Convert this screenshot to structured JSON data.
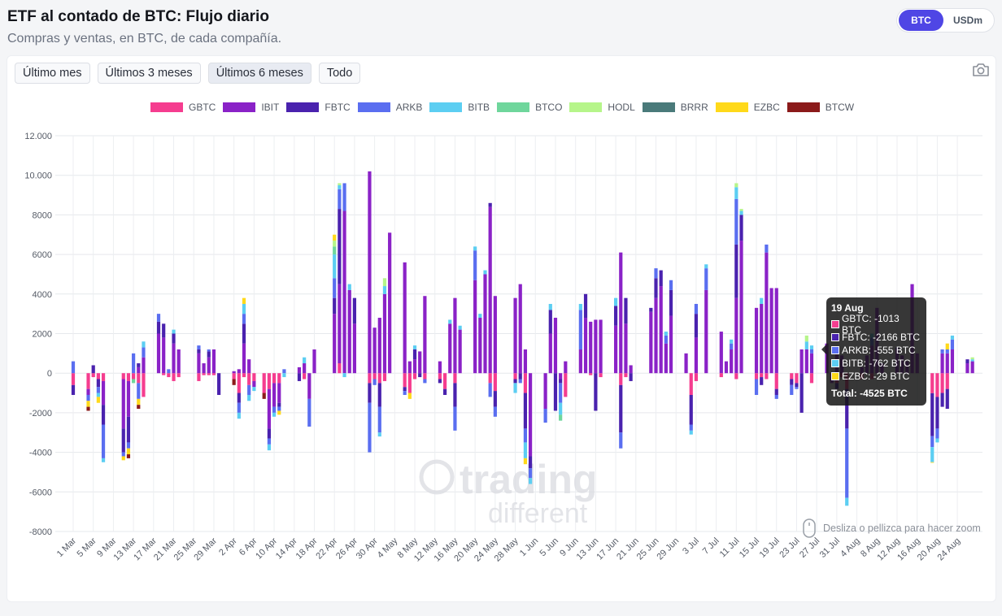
{
  "header": {
    "title": "ETF al contado de BTC: Flujo diario",
    "subtitle": "Compras y ventas, en BTC, de cada compañía."
  },
  "unit_toggle": {
    "btc": "BTC",
    "usd": "USDm"
  },
  "ranges": [
    {
      "label": "Último mes",
      "selected": false
    },
    {
      "label": "Últimos 3 meses",
      "selected": false
    },
    {
      "label": "Últimos 6 meses",
      "selected": true
    },
    {
      "label": "Todo",
      "selected": false
    }
  ],
  "zoom_hint": "Desliza o pellizca para hacer zoom",
  "watermark": {
    "line1": "trading",
    "line2": "different"
  },
  "tooltip": {
    "title": "19 Aug",
    "rows": [
      {
        "label": "GBTC: -1013 BTC",
        "color": "#f53d8f"
      },
      {
        "label": "FBTC: -2166 BTC",
        "color": "#4a22ae"
      },
      {
        "label": "ARKB: -555 BTC",
        "color": "#5a6ef0"
      },
      {
        "label": "BITB: -762 BTC",
        "color": "#5ccef2"
      },
      {
        "label": "EZBC: -29 BTC",
        "color": "#ffd91a"
      }
    ],
    "total": "Total: -4525 BTC"
  },
  "chart_data": {
    "type": "bar",
    "stacked": true,
    "title": "ETF al contado de BTC: Flujo diario",
    "ylabel": "BTC",
    "ylim": [
      -8000,
      12000
    ],
    "yticks": [
      12000,
      10000,
      8000,
      6000,
      4000,
      2000,
      0,
      -2000,
      -4000,
      -6000,
      -8000
    ],
    "ytick_labels": [
      "12.000",
      "10.000",
      "8000",
      "6000",
      "4000",
      "2000",
      "0",
      "-2000",
      "-4000",
      "-6000",
      "-8000"
    ],
    "x_tick_labels": [
      "1 Mar",
      "5 Mar",
      "9 Mar",
      "13 Mar",
      "17 Mar",
      "21 Mar",
      "25 Mar",
      "29 Mar",
      "2 Apr",
      "6 Apr",
      "10 Apr",
      "14 Apr",
      "18 Apr",
      "22 Apr",
      "26 Apr",
      "30 Apr",
      "4 May",
      "8 May",
      "12 May",
      "16 May",
      "20 May",
      "24 May",
      "28 May",
      "1 Jun",
      "5 Jun",
      "9 Jun",
      "13 Jun",
      "17 Jun",
      "21 Jun",
      "25 Jun",
      "29 Jun",
      "3 Jul",
      "7 Jul",
      "11 Jul",
      "15 Jul",
      "19 Jul",
      "23 Jul",
      "27 Jul",
      "31 Jul",
      "4 Aug",
      "8 Aug",
      "12 Aug",
      "16 Aug",
      "20 Aug",
      "24 Aug"
    ],
    "legend": [
      {
        "name": "GBTC",
        "color": "#f53d8f"
      },
      {
        "name": "IBIT",
        "color": "#8a22c7"
      },
      {
        "name": "FBTC",
        "color": "#4a22ae"
      },
      {
        "name": "ARKB",
        "color": "#5a6ef0"
      },
      {
        "name": "BITB",
        "color": "#5ccef2"
      },
      {
        "name": "BTCO",
        "color": "#6fd69c"
      },
      {
        "name": "HODL",
        "color": "#b6f58a"
      },
      {
        "name": "BRRR",
        "color": "#4a7a7a"
      },
      {
        "name": "EZBC",
        "color": "#ffd91a"
      },
      {
        "name": "BTCW",
        "color": "#8b1a1a"
      }
    ],
    "bars": [
      {
        "d": "1 Mar",
        "v": {
          "GBTC": -600,
          "FBTC": -500,
          "ARKB": 600
        }
      },
      {
        "d": "4 Mar",
        "v": {
          "GBTC": -800,
          "IBIT": -300,
          "ARKB": -300,
          "EZBC": -300,
          "BTCW": -200
        }
      },
      {
        "d": "5 Mar",
        "v": {
          "FBTC": 400,
          "GBTC": -200
        }
      },
      {
        "d": "6 Mar",
        "v": {
          "GBTC": -300,
          "FBTC": -400,
          "ARKB": -300,
          "BITB": -200,
          "EZBC": -300
        }
      },
      {
        "d": "7 Mar",
        "v": {
          "GBTC": -400,
          "IBIT": -1200,
          "FBTC": -1000,
          "ARKB": -1700,
          "BITB": -200
        }
      },
      {
        "d": "11 Mar",
        "v": {
          "GBTC": -300,
          "IBIT": -2500,
          "FBTC": -1200,
          "ARKB": -200,
          "EZBC": -200
        }
      },
      {
        "d": "12 Mar",
        "v": {
          "GBTC": -400,
          "IBIT": -1800,
          "FBTC": -1300,
          "ARKB": -300,
          "EZBC": -300,
          "BTCW": -200
        }
      },
      {
        "d": "13 Mar",
        "v": {
          "GBTC": -300,
          "ARKB": 1000,
          "BTCO": -200
        }
      },
      {
        "d": "14 Mar",
        "v": {
          "IBIT": 300,
          "FBTC": 200,
          "GBTC": -500,
          "ARKB": -800,
          "EZBC": -300,
          "BTCW": -200
        }
      },
      {
        "d": "15 Mar",
        "v": {
          "IBIT": 800,
          "ARKB": 500,
          "BITB": 300,
          "GBTC": -1200
        }
      },
      {
        "d": "18 Mar",
        "v": {
          "IBIT": 2000,
          "FBTC": 600,
          "ARKB": 400
        }
      },
      {
        "d": "19 Mar",
        "v": {
          "IBIT": 1800,
          "FBTC": 700,
          "GBTC": -100
        }
      },
      {
        "d": "20 Mar",
        "v": {
          "ARKB": 200,
          "GBTC": -200
        }
      },
      {
        "d": "21 Mar",
        "v": {
          "IBIT": 1500,
          "FBTC": 500,
          "BITB": 200,
          "GBTC": -400
        }
      },
      {
        "d": "22 Mar",
        "v": {
          "IBIT": 1200,
          "GBTC": -200
        }
      },
      {
        "d": "26 Mar",
        "v": {
          "IBIT": 1000,
          "FBTC": 200,
          "ARKB": 200,
          "GBTC": -400
        }
      },
      {
        "d": "27 Mar",
        "v": {
          "IBIT": 500,
          "GBTC": -100
        }
      },
      {
        "d": "28 Mar",
        "v": {
          "IBIT": 800,
          "FBTC": 300,
          "ARKB": 100,
          "GBTC": -100
        }
      },
      {
        "d": "29 Mar",
        "v": {
          "IBIT": 1200,
          "GBTC": -100
        }
      },
      {
        "d": "30 Mar",
        "v": {
          "FBTC": -1100
        }
      },
      {
        "d": "2 Apr",
        "v": {
          "IBIT": 100,
          "GBTC": -300,
          "BTCW": -300
        }
      },
      {
        "d": "3 Apr",
        "v": {
          "IBIT": 200,
          "GBTC": -1000,
          "FBTC": -500,
          "ARKB": -500,
          "BITB": -300
        }
      },
      {
        "d": "4 Apr",
        "v": {
          "IBIT": 1500,
          "FBTC": 1000,
          "ARKB": 500,
          "BITB": 500,
          "EZBC": 300,
          "GBTC": -200
        }
      },
      {
        "d": "5 Apr",
        "v": {
          "IBIT": 700,
          "GBTC": -600,
          "ARKB": -500,
          "BITB": -300
        }
      },
      {
        "d": "6 Apr",
        "v": {
          "GBTC": -400,
          "IBIT": -300,
          "BITB": -200
        }
      },
      {
        "d": "8 Apr",
        "v": {
          "GBTC": -1000,
          "BTCW": -300
        }
      },
      {
        "d": "9 Apr",
        "v": {
          "GBTC": -800,
          "IBIT": -2000,
          "FBTC": -500,
          "ARKB": -300,
          "BITB": -300
        }
      },
      {
        "d": "10 Apr",
        "v": {
          "GBTC": -500,
          "IBIT": -1200,
          "ARKB": -300,
          "BITB": -200
        }
      },
      {
        "d": "11 Apr",
        "v": {
          "GBTC": -500,
          "IBIT": -1000,
          "FBTC": -200,
          "ARKB": -200,
          "EZBC": -200
        }
      },
      {
        "d": "12 Apr",
        "v": {
          "ARKB": 200,
          "BITB": -200
        }
      },
      {
        "d": "15 Apr",
        "v": {
          "IBIT": 300,
          "FBTC": -400
        }
      },
      {
        "d": "16 Apr",
        "v": {
          "IBIT": 500,
          "BITB": 300,
          "GBTC": -300
        }
      },
      {
        "d": "17 Apr",
        "v": {
          "IBIT": -1300,
          "ARKB": -1400
        }
      },
      {
        "d": "18 Apr",
        "v": {
          "IBIT": 1200
        }
      },
      {
        "d": "22 Apr",
        "v": {
          "IBIT": 3000,
          "FBTC": 800,
          "ARKB": 1000,
          "BITB": 1200,
          "BTCO": 400,
          "HODL": 300,
          "EZBC": 300
        }
      },
      {
        "d": "23 Apr",
        "v": {
          "GBTC": 500,
          "IBIT": 4000,
          "FBTC": 3800,
          "ARKB": 1000,
          "BITB": 200,
          "HODL": 100
        }
      },
      {
        "d": "24 Apr",
        "v": {
          "IBIT": 8200,
          "ARKB": 1400,
          "BITB": -200
        }
      },
      {
        "d": "25 Apr",
        "v": {
          "IBIT": 4200,
          "BITB": 300
        }
      },
      {
        "d": "26 Apr",
        "v": {
          "IBIT": 2500,
          "FBTC": 1300
        }
      },
      {
        "d": "29 Apr",
        "v": {
          "IBIT": 10200,
          "GBTC": -500,
          "FBTC": -1000,
          "ARKB": -2500
        }
      },
      {
        "d": "30 Apr",
        "v": {
          "IBIT": 2300,
          "GBTC": -300,
          "ARKB": -300
        }
      },
      {
        "d": "1 May",
        "v": {
          "IBIT": 2800,
          "GBTC": -500,
          "FBTC": -1200,
          "ARKB": -1300,
          "BITB": -200
        }
      },
      {
        "d": "2 May",
        "v": {
          "IBIT": 4000,
          "BITB": 400,
          "HODL": 400,
          "GBTC": -400
        }
      },
      {
        "d": "3 May",
        "v": {
          "IBIT": 7100
        }
      },
      {
        "d": "6 May",
        "v": {
          "IBIT": 5600,
          "GBTC": -700,
          "FBTC": -200,
          "ARKB": -200
        }
      },
      {
        "d": "7 May",
        "v": {
          "IBIT": 600,
          "GBTC": -1000,
          "EZBC": -300
        }
      },
      {
        "d": "8 May",
        "v": {
          "IBIT": 700,
          "FBTC": 500,
          "BITB": 200,
          "GBTC": -300
        }
      },
      {
        "d": "9 May",
        "v": {
          "IBIT": 1100,
          "FBTC": -200
        }
      },
      {
        "d": "10 May",
        "v": {
          "IBIT": 3900,
          "GBTC": -300,
          "ARKB": -200
        }
      },
      {
        "d": "13 May",
        "v": {
          "IBIT": 600,
          "GBTC": -300,
          "FBTC": -200
        }
      },
      {
        "d": "14 May",
        "v": {
          "GBTC": -800,
          "FBTC": -300
        }
      },
      {
        "d": "15 May",
        "v": {
          "IBIT": 2500,
          "BITB": 200
        }
      },
      {
        "d": "16 May",
        "v": {
          "IBIT": 3800,
          "GBTC": -500,
          "FBTC": -1200,
          "ARKB": -1200
        }
      },
      {
        "d": "17 May",
        "v": {
          "IBIT": 2200,
          "BITB": 200
        }
      },
      {
        "d": "20 May",
        "v": {
          "IBIT": 4700,
          "ARKB": 1500,
          "BITB": 200
        }
      },
      {
        "d": "21 May",
        "v": {
          "IBIT": 2800,
          "BITB": 200
        }
      },
      {
        "d": "22 May",
        "v": {
          "IBIT": 5000,
          "BITB": 200
        }
      },
      {
        "d": "23 May",
        "v": {
          "IBIT": 8400,
          "FBTC": 200,
          "GBTC": -500,
          "ARKB": -700
        }
      },
      {
        "d": "24 May",
        "v": {
          "IBIT": 3900,
          "GBTC": -900,
          "FBTC": -800,
          "ARKB": -500
        }
      },
      {
        "d": "28 May",
        "v": {
          "IBIT": 3800,
          "GBTC": -300,
          "FBTC": -200,
          "BITB": -500
        }
      },
      {
        "d": "29 May",
        "v": {
          "IBIT": 4500,
          "FBTC": -300,
          "ARKB": -200
        }
      },
      {
        "d": "30 May",
        "v": {
          "IBIT": 1200,
          "GBTC": -1000,
          "FBTC": -1800,
          "ARKB": -700,
          "BITB": -800,
          "EZBC": -300
        }
      },
      {
        "d": "31 May",
        "v": {
          "IBIT": -4200,
          "FBTC": -600,
          "ARKB": -500,
          "BITB": -300
        }
      },
      {
        "d": "3 Jun",
        "v": {
          "IBIT": -1800,
          "ARKB": -700
        }
      },
      {
        "d": "4 Jun",
        "v": {
          "IBIT": 2000,
          "FBTC": 1200,
          "BITB": 300
        }
      },
      {
        "d": "5 Jun",
        "v": {
          "IBIT": 2800,
          "FBTC": -1900
        }
      },
      {
        "d": "6 Jun",
        "v": {
          "IBIT": -300,
          "FBTC": -200,
          "ARKB": -1000,
          "BITB": -600,
          "BTCO": -300
        }
      },
      {
        "d": "7 Jun",
        "v": {
          "IBIT": 600,
          "GBTC": -1200
        }
      },
      {
        "d": "10 Jun",
        "v": {
          "IBIT": 1200,
          "ARKB": 2000,
          "BITB": 300
        }
      },
      {
        "d": "11 Jun",
        "v": {
          "IBIT": 2800,
          "FBTC": 1200
        }
      },
      {
        "d": "12 Jun",
        "v": {
          "IBIT": 2600,
          "GBTC": -100
        }
      },
      {
        "d": "13 Jun",
        "v": {
          "IBIT": 2700,
          "FBTC": -1900
        }
      },
      {
        "d": "14 Jun",
        "v": {
          "IBIT": 2700,
          "GBTC": -200
        }
      },
      {
        "d": "17 Jun",
        "v": {
          "IBIT": 2400,
          "FBTC": 1000,
          "BITB": 400
        }
      },
      {
        "d": "18 Jun",
        "v": {
          "IBIT": 6100,
          "GBTC": -600,
          "FBTC": -2400,
          "ARKB": -800
        }
      },
      {
        "d": "19 Jun",
        "v": {
          "IBIT": 2500,
          "FBTC": 1300,
          "GBTC": -200
        }
      },
      {
        "d": "20 Jun",
        "v": {
          "FBTC": -400,
          "IBIT": 400
        }
      },
      {
        "d": "24 Jun",
        "v": {
          "IBIT": 3100,
          "FBTC": 200
        }
      },
      {
        "d": "25 Jun",
        "v": {
          "IBIT": 3800,
          "FBTC": 1000,
          "ARKB": 500
        }
      },
      {
        "d": "26 Jun",
        "v": {
          "IBIT": 4400,
          "FBTC": 800
        }
      },
      {
        "d": "27 Jun",
        "v": {
          "IBIT": 1500,
          "ARKB": 400,
          "BITB": 200
        }
      },
      {
        "d": "28 Jun",
        "v": {
          "IBIT": 2900,
          "FBTC": 1300,
          "ARKB": 500
        }
      },
      {
        "d": "1 Jul",
        "v": {
          "IBIT": 1000
        }
      },
      {
        "d": "2 Jul",
        "v": {
          "GBTC": -1100,
          "FBTC": -1500,
          "ARKB": -300,
          "BITB": -200
        }
      },
      {
        "d": "3 Jul",
        "v": {
          "IBIT": 1800,
          "FBTC": 1200,
          "ARKB": 500,
          "GBTC": -400
        }
      },
      {
        "d": "5 Jul",
        "v": {
          "IBIT": 4200,
          "ARKB": 1100,
          "BITB": 200
        }
      },
      {
        "d": "8 Jul",
        "v": {
          "IBIT": 2100,
          "GBTC": -200
        }
      },
      {
        "d": "9 Jul",
        "v": {
          "IBIT": 600
        }
      },
      {
        "d": "10 Jul",
        "v": {
          "IBIT": 1200,
          "ARKB": 300,
          "BITB": 200
        }
      },
      {
        "d": "11 Jul",
        "v": {
          "IBIT": 3800,
          "FBTC": 2700,
          "ARKB": 2300,
          "BITB": 600,
          "HODL": 200,
          "GBTC": -300
        }
      },
      {
        "d": "12 Jul",
        "v": {
          "IBIT": 6700,
          "FBTC": 1300,
          "BITB": 200,
          "HODL": 100
        }
      },
      {
        "d": "15 Jul",
        "v": {
          "IBIT": 3300,
          "GBTC": -300,
          "ARKB": -800
        }
      },
      {
        "d": "16 Jul",
        "v": {
          "IBIT": 3500,
          "BITB": 300,
          "GBTC": -200,
          "FBTC": -400
        }
      },
      {
        "d": "17 Jul",
        "v": {
          "IBIT": 6100,
          "ARKB": 400,
          "GBTC": -300
        }
      },
      {
        "d": "18 Jul",
        "v": {
          "IBIT": 4300
        }
      },
      {
        "d": "19 Jul",
        "v": {
          "IBIT": 4300,
          "GBTC": -800,
          "FBTC": -300,
          "ARKB": -200
        }
      },
      {
        "d": "22 Jul",
        "v": {
          "GBTC": -300,
          "FBTC": -300,
          "ARKB": -500
        }
      },
      {
        "d": "23 Jul",
        "v": {
          "GBTC": -500,
          "FBTC": -200,
          "ARKB": -100
        }
      },
      {
        "d": "24 Jul",
        "v": {
          "IBIT": 1200,
          "FBTC": -2000
        }
      },
      {
        "d": "25 Jul",
        "v": {
          "IBIT": 1200,
          "BITB": 400,
          "HODL": 300
        }
      },
      {
        "d": "26 Jul",
        "v": {
          "IBIT": 1000,
          "ARKB": 200,
          "BITB": 200,
          "GBTC": -500
        }
      },
      {
        "d": "29 Jul",
        "v": {
          "IBIT": 1500
        }
      },
      {
        "d": "30 Jul",
        "v": {
          "GBTC": -200,
          "IBIT": -300
        }
      },
      {
        "d": "31 Jul",
        "v": {
          "IBIT": 1200,
          "GBTC": -500,
          "FBTC": -300
        }
      },
      {
        "d": "1 Aug",
        "v": {
          "IBIT": 900,
          "GBTC": -200
        }
      },
      {
        "d": "2 Aug",
        "v": {
          "GBTC": -800,
          "FBTC": -2000,
          "ARKB": -3500,
          "BITB": -400
        }
      },
      {
        "d": "5 Aug",
        "v": {
          "IBIT": 300,
          "GBTC": -300
        }
      },
      {
        "d": "6 Aug",
        "v": {
          "IBIT": 900
        }
      },
      {
        "d": "7 Aug",
        "v": {
          "IBIT": 1400,
          "ARKB": 400,
          "BITB": 200,
          "GBTC": -300
        }
      },
      {
        "d": "8 Aug",
        "v": {
          "IBIT": 3300
        }
      },
      {
        "d": "9 Aug",
        "v": {
          "IBIT": 500
        }
      },
      {
        "d": "12 Aug",
        "v": {
          "IBIT": 1200,
          "FBTC": 100
        }
      },
      {
        "d": "13 Aug",
        "v": {
          "IBIT": 900
        }
      },
      {
        "d": "14 Aug",
        "v": {
          "IBIT": 600
        }
      },
      {
        "d": "15 Aug",
        "v": {
          "IBIT": 4500
        }
      },
      {
        "d": "16 Aug",
        "v": {
          "IBIT": 1000
        }
      },
      {
        "d": "19 Aug",
        "v": {
          "GBTC": -1013,
          "FBTC": -2166,
          "ARKB": -555,
          "BITB": -762,
          "EZBC": -29
        }
      },
      {
        "d": "20 Aug",
        "v": {
          "GBTC": -1200,
          "FBTC": -1600,
          "ARKB": -500,
          "BITB": -200
        }
      },
      {
        "d": "21 Aug",
        "v": {
          "IBIT": 1000,
          "ARKB": 200,
          "GBTC": -1000,
          "FBTC": -700
        }
      },
      {
        "d": "22 Aug",
        "v": {
          "IBIT": 1000,
          "ARKB": 200,
          "EZBC": 300,
          "GBTC": -800,
          "FBTC": -1000
        }
      },
      {
        "d": "23 Aug",
        "v": {
          "IBIT": 1200,
          "ARKB": 500,
          "BITB": 200
        }
      },
      {
        "d": "26 Aug",
        "v": {
          "IBIT": 500,
          "FBTC": 200
        }
      },
      {
        "d": "27 Aug",
        "v": {
          "IBIT": 600,
          "BITB": 100,
          "HODL": 100
        }
      }
    ]
  }
}
